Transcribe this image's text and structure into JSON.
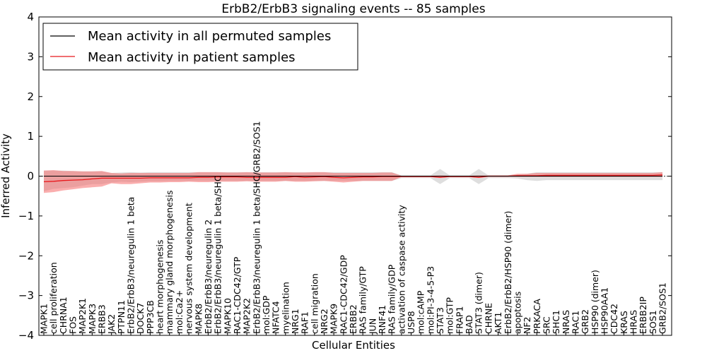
{
  "chart_data": {
    "type": "line",
    "title": "ErbB2/ErbB3 signaling events -- 85 samples",
    "xlabel": "Cellular Entities",
    "ylabel": "Inferred Activity",
    "ylim": [
      -4,
      4
    ],
    "yticks": [
      4,
      3,
      2,
      1,
      0,
      -1,
      -2,
      -3,
      -4
    ],
    "ytick_labels": [
      "4",
      "3",
      "2",
      "1",
      "0",
      "−1",
      "−2",
      "−3",
      "−4"
    ],
    "legend_position": "top-left",
    "colors": {
      "permuted_line": "#000000",
      "patient_line": "#e8191c",
      "patient_band": "#f56b6b",
      "permuted_band": "#c8c8c8"
    },
    "categories": [
      "MAPK1",
      "cell proliferation",
      "CHRNA1",
      "FOS",
      "MAP2K1",
      "MAPK3",
      "ERBB3",
      "JAK2",
      "PTPN11",
      "ErbB2/ErbB3/neuregulin 1 beta",
      "DOCK7",
      "PPP3CB",
      "heart morphogenesis",
      "mammary gland morphogenesis",
      "mol:Ca2+",
      "nervous system development",
      "MAPK8",
      "ErbB2/ErbB3/neuregulin 2",
      "ErbB2/ErbB3/neuregulin 1 beta/SHC",
      "MAPK10",
      "RAC1-CDC42/GTP",
      "MAP2K2",
      "ErbB2/ErbB3/neuregulin 1 beta/SHC/GRB2/SOS1",
      "mol:GDP",
      "NFATC4",
      "myelination",
      "NRG1",
      "RAF1",
      "cell migration",
      "NRG2",
      "MAPK9",
      "RAC1-CDC42/GDP",
      "ERBB2",
      "RAS family/GTP",
      "JUN",
      "RNF41",
      "RAS family/GDP",
      "activation of caspase activity",
      "USP8",
      "mol:cAMP",
      "mol:PI-3-4-5-P3",
      "STAT3",
      "mol:GTP",
      "FRAP1",
      "BAD",
      "STAT3 (dimer)",
      "CHRNE",
      "AKT1",
      "ErbB2/ErbB2/HSP90 (dimer)",
      "apoptosis",
      "NF2",
      "PRKACA",
      "SRC",
      "SHC1",
      "NRAS",
      "RAC1",
      "GRB2",
      "HSP90 (dimer)",
      "HSP90AA1",
      "CDC42",
      "KRAS",
      "HRAS",
      "ERBB2IP",
      "SOS1",
      "GRB2/SOS1"
    ],
    "series": [
      {
        "name": "Mean activity in all permuted samples",
        "values": [
          0,
          0,
          0,
          0,
          0,
          0,
          0,
          0,
          0,
          0,
          0,
          0,
          0,
          0,
          0,
          0,
          0,
          0,
          0,
          0,
          0,
          0,
          0,
          0,
          0,
          0,
          0,
          0,
          0,
          0,
          0,
          0,
          0,
          0,
          0,
          0,
          0,
          0,
          0,
          0,
          0,
          0,
          0,
          0,
          0,
          0,
          0,
          0,
          0,
          0,
          0,
          0,
          0,
          0,
          0,
          0,
          0,
          0,
          0,
          0,
          0,
          0,
          0,
          0,
          0
        ],
        "lower": [
          -0.38,
          -0.32,
          -0.3,
          -0.28,
          -0.24,
          -0.2,
          -0.2,
          -0.16,
          -0.14,
          -0.15,
          -0.14,
          -0.13,
          -0.13,
          -0.12,
          -0.12,
          -0.12,
          -0.12,
          -0.12,
          -0.12,
          -0.12,
          -0.12,
          -0.12,
          -0.12,
          -0.12,
          -0.12,
          -0.12,
          -0.12,
          -0.12,
          -0.12,
          -0.12,
          -0.12,
          -0.12,
          -0.12,
          -0.12,
          -0.12,
          -0.12,
          -0.12,
          -0.05,
          -0.05,
          -0.05,
          -0.05,
          -0.2,
          -0.05,
          -0.05,
          -0.05,
          -0.2,
          -0.05,
          -0.05,
          -0.05,
          -0.06,
          -0.1,
          -0.12,
          -0.1,
          -0.1,
          -0.1,
          -0.1,
          -0.1,
          -0.1,
          -0.1,
          -0.1,
          -0.1,
          -0.1,
          -0.1,
          -0.1,
          -0.1
        ],
        "upper": [
          0.14,
          0.14,
          0.14,
          0.13,
          0.12,
          0.12,
          0.12,
          0.08,
          0.09,
          0.1,
          0.09,
          0.1,
          0.1,
          0.1,
          0.1,
          0.1,
          0.1,
          0.1,
          0.1,
          0.1,
          0.1,
          0.1,
          0.1,
          0.1,
          0.1,
          0.1,
          0.1,
          0.1,
          0.1,
          0.1,
          0.1,
          0.1,
          0.1,
          0.1,
          0.1,
          0.1,
          0.1,
          0.02,
          0.02,
          0.02,
          0.02,
          0.18,
          0.02,
          0.02,
          0.02,
          0.18,
          0.02,
          0.02,
          0.02,
          0.04,
          0.06,
          0.1,
          0.1,
          0.1,
          0.1,
          0.1,
          0.1,
          0.1,
          0.1,
          0.1,
          0.1,
          0.1,
          0.1,
          0.1,
          0.1
        ]
      },
      {
        "name": "Mean activity in patient samples",
        "values": [
          -0.14,
          -0.13,
          -0.11,
          -0.1,
          -0.09,
          -0.07,
          -0.05,
          -0.05,
          -0.05,
          -0.05,
          -0.05,
          -0.04,
          -0.04,
          -0.04,
          -0.04,
          -0.04,
          -0.03,
          -0.03,
          -0.02,
          -0.02,
          -0.02,
          -0.03,
          -0.03,
          -0.03,
          -0.03,
          -0.03,
          -0.01,
          -0.03,
          -0.02,
          -0.01,
          -0.03,
          -0.04,
          -0.03,
          -0.02,
          -0.02,
          -0.01,
          -0.01,
          -0.01,
          -0.01,
          -0.01,
          -0.01,
          -0.03,
          -0.01,
          -0.01,
          -0.01,
          -0.03,
          0.0,
          0.0,
          0.0,
          0.01,
          0.01,
          0.01,
          0.02,
          0.02,
          0.02,
          0.02,
          0.02,
          0.02,
          0.02,
          0.02,
          0.02,
          0.02,
          0.02,
          0.02,
          0.03
        ],
        "lower": [
          -0.42,
          -0.4,
          -0.36,
          -0.33,
          -0.3,
          -0.28,
          -0.26,
          -0.18,
          -0.2,
          -0.2,
          -0.18,
          -0.16,
          -0.16,
          -0.15,
          -0.15,
          -0.14,
          -0.15,
          -0.15,
          -0.14,
          -0.14,
          -0.14,
          -0.13,
          -0.14,
          -0.14,
          -0.14,
          -0.12,
          -0.14,
          -0.14,
          -0.13,
          -0.12,
          -0.14,
          -0.16,
          -0.14,
          -0.12,
          -0.12,
          -0.12,
          -0.12,
          -0.02,
          -0.02,
          -0.02,
          -0.02,
          -0.04,
          -0.02,
          -0.02,
          -0.02,
          -0.04,
          -0.02,
          -0.02,
          -0.02,
          -0.02,
          -0.02,
          -0.02,
          -0.02,
          -0.02,
          -0.02,
          -0.02,
          -0.02,
          -0.02,
          -0.02,
          -0.02,
          -0.02,
          -0.02,
          -0.02,
          -0.02,
          -0.02
        ],
        "upper": [
          0.14,
          0.15,
          0.13,
          0.13,
          0.12,
          0.12,
          0.13,
          0.08,
          0.07,
          0.08,
          0.08,
          0.08,
          0.08,
          0.08,
          0.08,
          0.08,
          0.1,
          0.1,
          0.1,
          0.09,
          0.09,
          0.1,
          0.09,
          0.09,
          0.09,
          0.1,
          0.09,
          0.09,
          0.1,
          0.1,
          0.08,
          0.08,
          0.08,
          0.08,
          0.08,
          0.09,
          0.09,
          0.01,
          0.01,
          0.01,
          0.01,
          0.02,
          0.01,
          0.01,
          0.01,
          0.02,
          0.02,
          0.02,
          0.02,
          0.06,
          0.06,
          0.08,
          0.08,
          0.08,
          0.08,
          0.08,
          0.08,
          0.08,
          0.08,
          0.08,
          0.08,
          0.08,
          0.08,
          0.08,
          0.1
        ]
      }
    ]
  }
}
